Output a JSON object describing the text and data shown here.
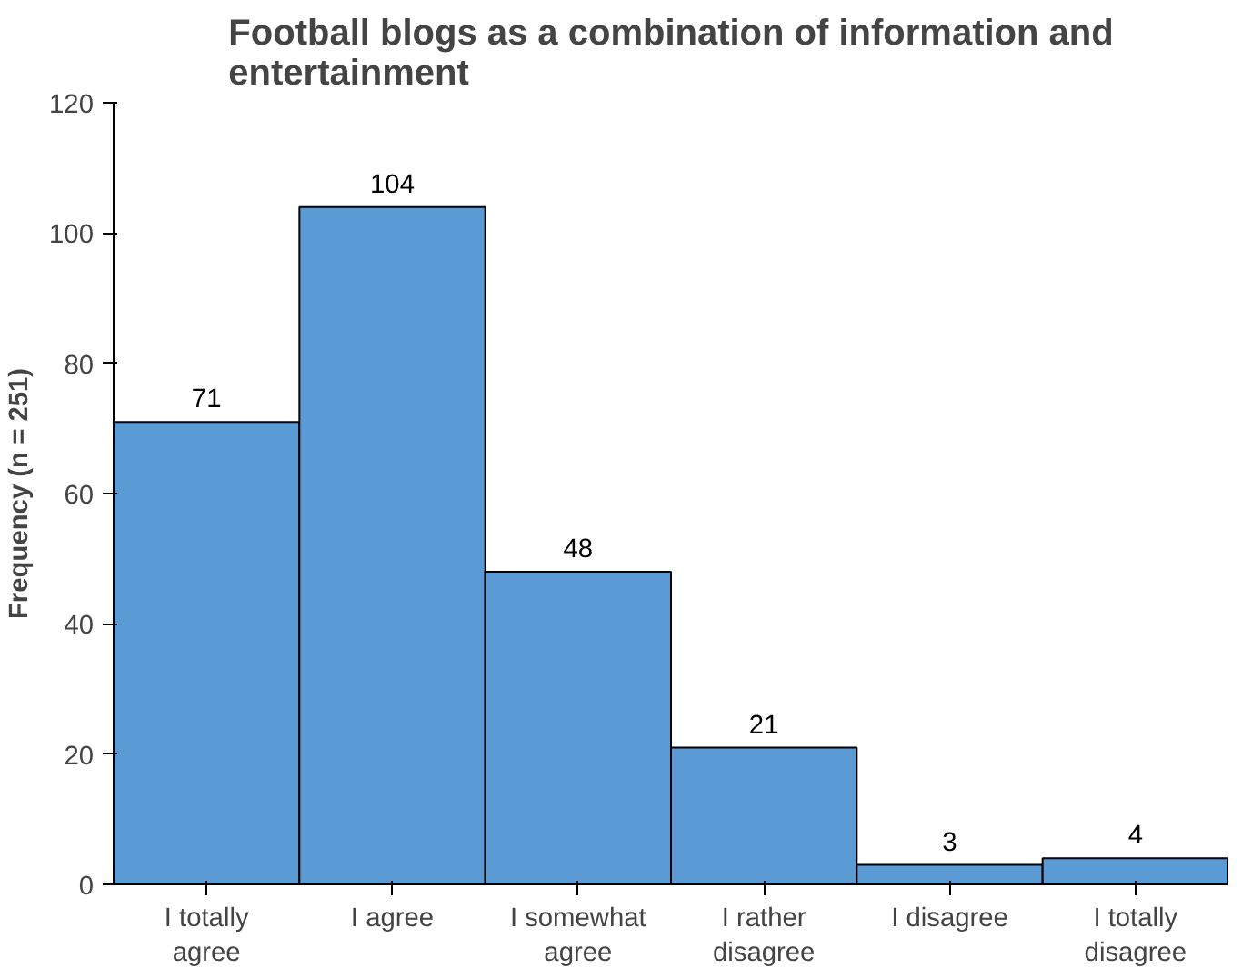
{
  "chart_data": {
    "type": "bar",
    "title": "Football blogs as a combination of information and entertainment",
    "ylabel": "Frequency (n = 251)",
    "categories": [
      "I totally agree",
      "I agree",
      "I somewhat agree",
      "I rather disagree",
      "I disagree",
      "I totally disagree"
    ],
    "values": [
      71,
      104,
      48,
      21,
      3,
      4
    ],
    "color": "#5b9bd5",
    "ylim": [
      0,
      120
    ],
    "yticks": [
      0,
      20,
      40,
      60,
      80,
      100,
      120
    ],
    "grid": false,
    "data_labels": true
  }
}
